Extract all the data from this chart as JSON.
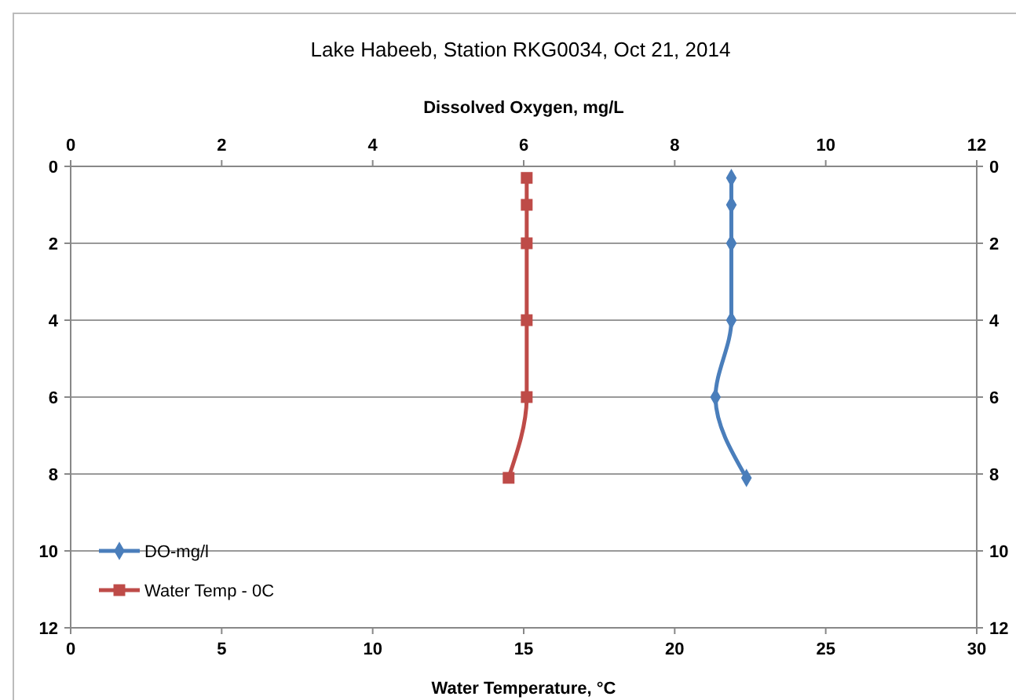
{
  "chart_data": {
    "type": "line",
    "title": "Lake Habeeb, Station RKG0034,  Oct 21, 2014",
    "xlabel": "Water Temperature, °C",
    "x2label": "Dissolved Oxygen, mg/L",
    "xlim": [
      0,
      30
    ],
    "xticks": [
      0,
      5,
      10,
      15,
      20,
      25,
      30
    ],
    "x2lim": [
      0,
      12
    ],
    "x2ticks": [
      0,
      2,
      4,
      6,
      8,
      10,
      12
    ],
    "ylim": [
      12,
      0
    ],
    "yticks": [
      0,
      2,
      4,
      6,
      8,
      10,
      12
    ],
    "y2lim": [
      12,
      0
    ],
    "y2ticks": [
      0,
      2,
      4,
      6,
      8,
      10,
      12
    ],
    "grid": "y",
    "legend": "bottom left",
    "series": [
      {
        "name": "DO-mg/l",
        "color": "#4a7ebb",
        "axis": "x2",
        "marker": "diamond",
        "x": [
          8.75,
          8.75,
          8.75,
          8.75,
          8.54,
          8.95
        ],
        "values": [
          0.3,
          1,
          2,
          4,
          6,
          8.1
        ]
      },
      {
        "name": "Water Temp - 0C",
        "color": "#be4b48",
        "marker": "square",
        "x": [
          15.1,
          15.1,
          15.1,
          15.1,
          15.1,
          14.5
        ],
        "values": [
          0.3,
          1,
          2,
          4,
          6,
          8.1
        ]
      }
    ]
  }
}
